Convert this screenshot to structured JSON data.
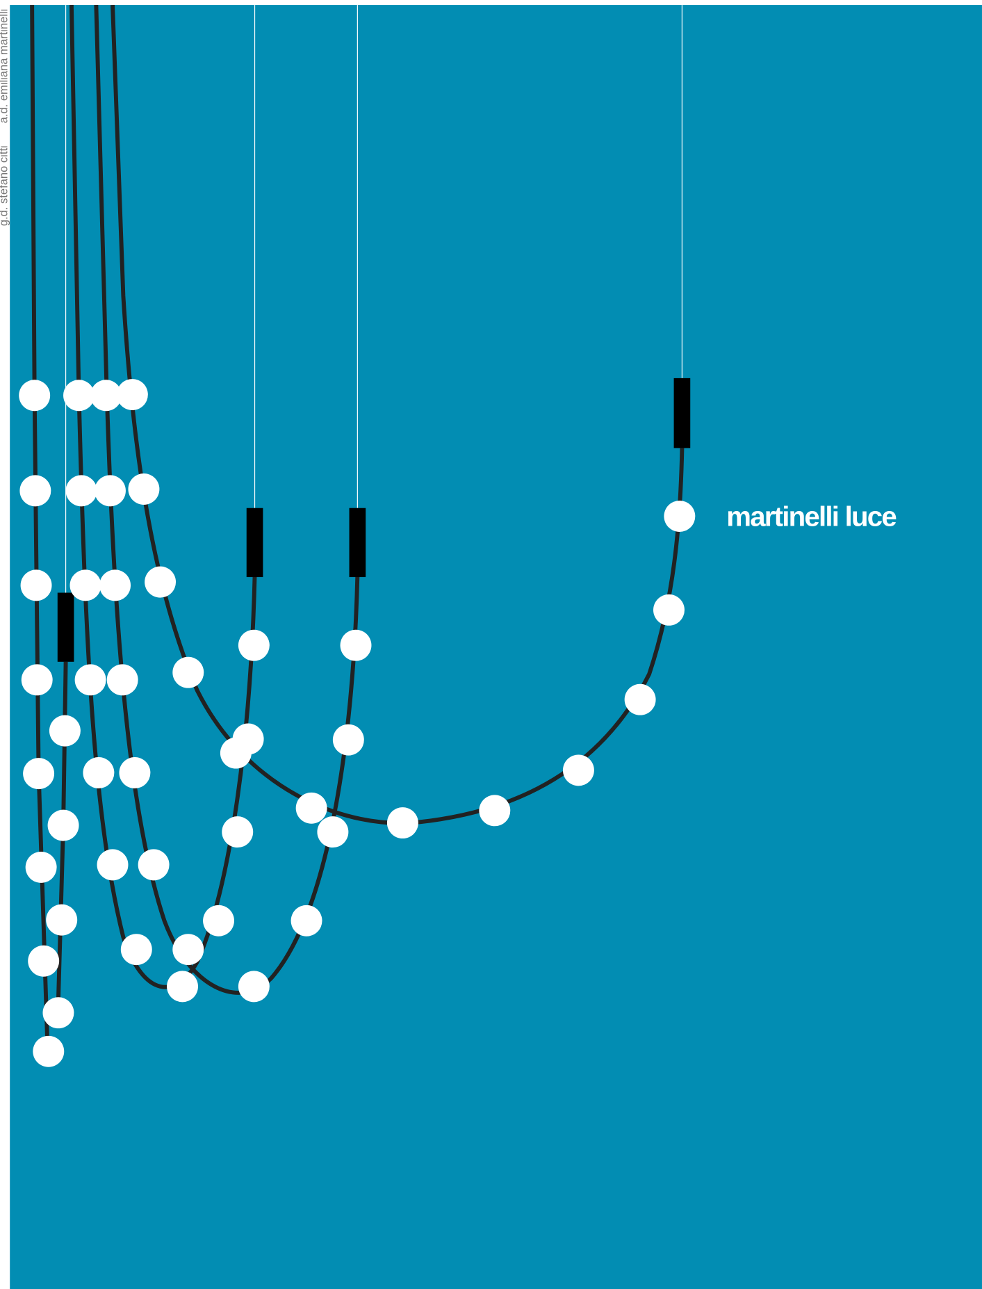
{
  "brand": "martinelli luce",
  "credits": [
    "g.d. stefano citti",
    "a.d. emiliana martinelli"
  ]
}
